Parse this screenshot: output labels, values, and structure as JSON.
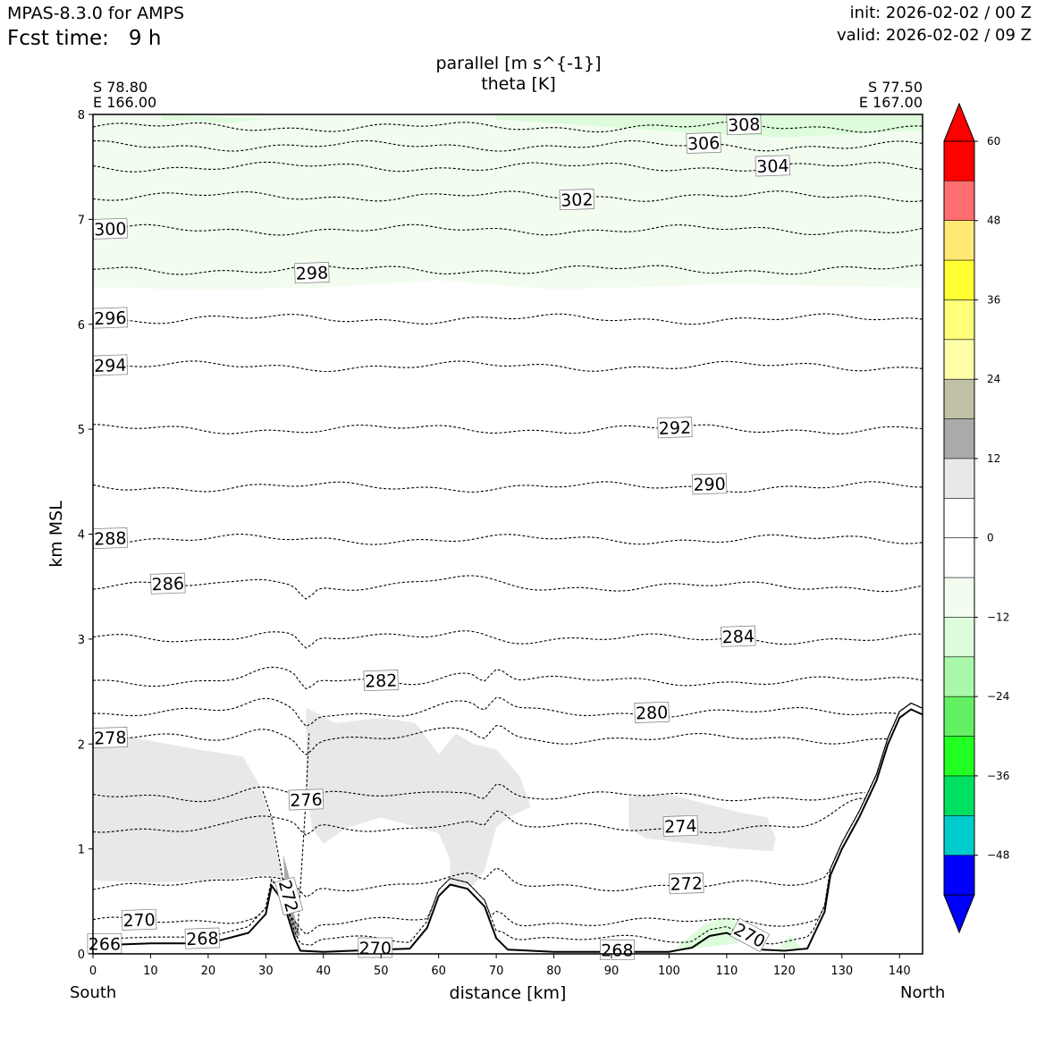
{
  "header": {
    "model": "MPAS-8.3.0 for AMPS",
    "fcst_label": "Fcst time:",
    "fcst_hours": "9 h",
    "init": "init: 2026-02-02 / 00 Z",
    "valid": "valid: 2026-02-02 / 09 Z"
  },
  "endpoints": {
    "left_lat": "S 78.80",
    "left_lon": "E 166.00",
    "right_lat": "S 77.50",
    "right_lon": "E 167.00",
    "left_dir": "South",
    "right_dir": "North"
  },
  "chart_data": {
    "type": "cross-section",
    "title": "parallel [m s^{-1}]",
    "subtitle": "theta [K]",
    "xlabel": "distance [km]",
    "ylabel": "km MSL",
    "xlim": [
      0,
      144
    ],
    "ylim": [
      0,
      8
    ],
    "xticks": [
      0,
      10,
      20,
      30,
      40,
      50,
      60,
      70,
      80,
      90,
      100,
      110,
      120,
      130,
      140
    ],
    "yticks": [
      0,
      1,
      2,
      3,
      4,
      5,
      6,
      7,
      8
    ],
    "grid": false,
    "terrain": [
      [
        0,
        0.08
      ],
      [
        10,
        0.1
      ],
      [
        20,
        0.1
      ],
      [
        27,
        0.2
      ],
      [
        30,
        0.38
      ],
      [
        31,
        0.65
      ],
      [
        33,
        0.5
      ],
      [
        35,
        0.15
      ],
      [
        36,
        0.03
      ],
      [
        40,
        0.02
      ],
      [
        45,
        0.03
      ],
      [
        55,
        0.05
      ],
      [
        58,
        0.25
      ],
      [
        60,
        0.55
      ],
      [
        62,
        0.66
      ],
      [
        65,
        0.62
      ],
      [
        68,
        0.45
      ],
      [
        70,
        0.15
      ],
      [
        72,
        0.04
      ],
      [
        80,
        0.02
      ],
      [
        90,
        0.02
      ],
      [
        100,
        0.02
      ],
      [
        104,
        0.06
      ],
      [
        107,
        0.17
      ],
      [
        110,
        0.2
      ],
      [
        113,
        0.12
      ],
      [
        116,
        0.04
      ],
      [
        120,
        0.03
      ],
      [
        124,
        0.05
      ],
      [
        127,
        0.4
      ],
      [
        128,
        0.75
      ],
      [
        130,
        1.0
      ],
      [
        133,
        1.3
      ],
      [
        136,
        1.65
      ],
      [
        138,
        2.0
      ],
      [
        140,
        2.25
      ],
      [
        142,
        2.33
      ],
      [
        144,
        2.28
      ]
    ],
    "theta_contours": [
      {
        "value": 308,
        "height": 7.88,
        "label_x": 113
      },
      {
        "value": 306,
        "height": 7.7,
        "label_x": 106
      },
      {
        "value": 304,
        "height": 7.5,
        "label_x": 118
      },
      {
        "value": 302,
        "height": 7.22,
        "label_x": 84
      },
      {
        "value": 300,
        "height": 6.9,
        "label_x": 3
      },
      {
        "value": 298,
        "height": 6.52,
        "label_x": 38
      },
      {
        "value": 296,
        "height": 6.05,
        "label_x": 3
      },
      {
        "value": 294,
        "height": 5.6,
        "label_x": 3
      },
      {
        "value": 292,
        "height": 5.0,
        "label_x": 101
      },
      {
        "value": 290,
        "height": 4.45,
        "label_x": 107
      },
      {
        "value": 288,
        "height": 3.95,
        "label_x": 3
      },
      {
        "value": 286,
        "height": 3.5,
        "label_x": 13
      },
      {
        "value": 284,
        "height": 3.0,
        "label_x": 112
      },
      {
        "value": 282,
        "height": 2.6,
        "label_x": 50
      },
      {
        "value": 280,
        "height": 2.3,
        "label_x": 97
      },
      {
        "value": 278,
        "height": 2.05,
        "label_x": 3
      },
      {
        "value": 276,
        "height": 1.5,
        "label_x": 37
      },
      {
        "value": 274,
        "height": 1.2,
        "label_x": 102
      },
      {
        "value": 272,
        "height": 0.65,
        "label_x": 103
      },
      {
        "value": 270,
        "height": 0.3,
        "label_x": 8
      },
      {
        "value": 268,
        "height": 0.13,
        "label_x": 19
      }
    ],
    "extra_labels": [
      {
        "value": 272,
        "x": 34,
        "y": 0.55,
        "rotate": 75
      },
      {
        "value": 270,
        "x": 49,
        "y": 0.06,
        "rotate": 0
      },
      {
        "value": 268,
        "x": 91,
        "y": 0.04,
        "rotate": 0
      },
      {
        "value": 270,
        "x": 114,
        "y": 0.18,
        "rotate": 28
      },
      {
        "value": 266,
        "x": 2,
        "y": 0.1,
        "rotate": 0
      }
    ],
    "colorbar": {
      "ticks": [
        60,
        48,
        36,
        24,
        12,
        0,
        -12,
        -24,
        -36,
        -48
      ],
      "colors": [
        "#ff0000",
        "#ff6e6e",
        "#ffe873",
        "#ffff33",
        "#ffff7a",
        "#ffffaa",
        "#c0c0a6",
        "#aaaaaa",
        "#e8e8e8",
        "#ffffff",
        "#ffffff",
        "#f2fdf0",
        "#dcfcdc",
        "#a9f8a9",
        "#63f063",
        "#22ff22",
        "#00e060",
        "#00cccc",
        "#0000ff"
      ],
      "over_color": "#ff0000",
      "under_color": "#0000ff"
    }
  }
}
